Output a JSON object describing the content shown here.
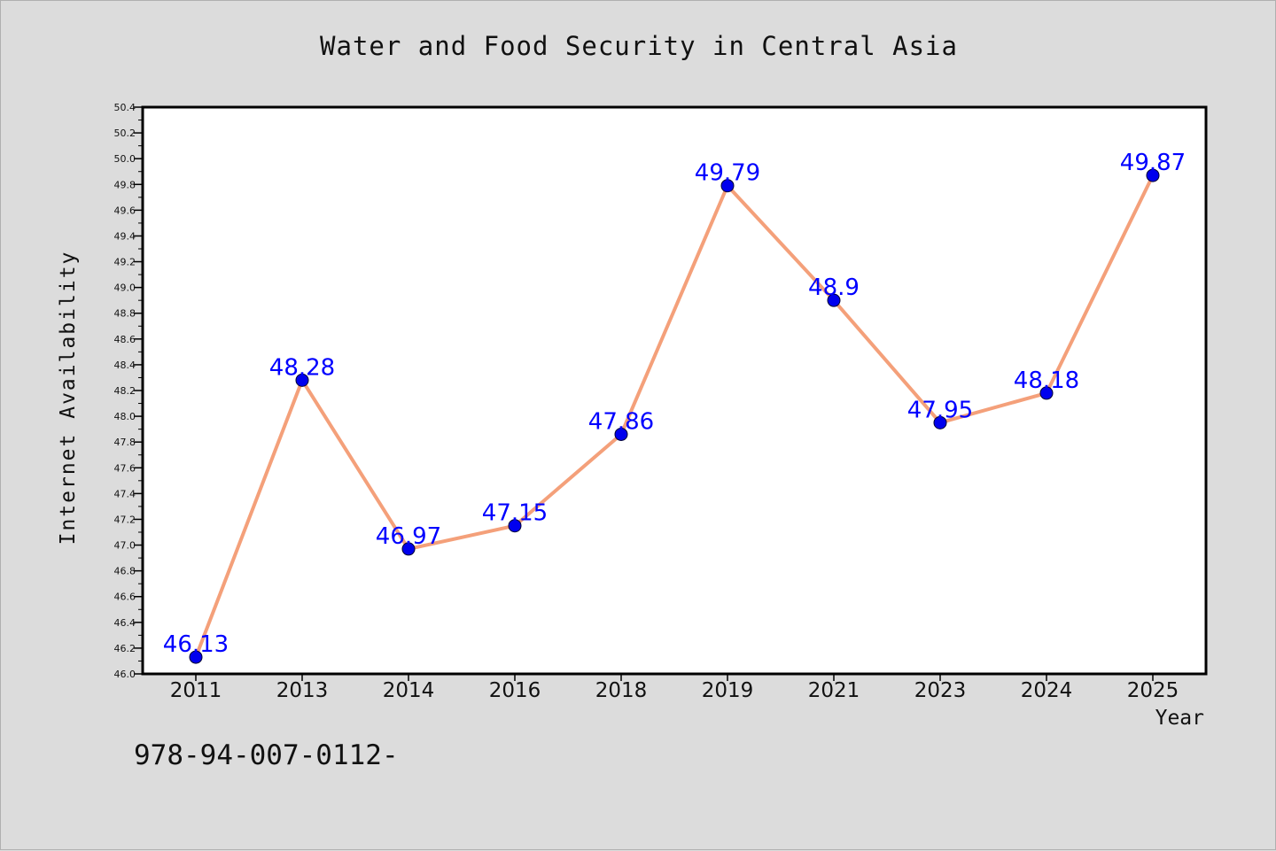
{
  "chart_data": {
    "type": "line",
    "title": "Water and Food Security in Central Asia",
    "xlabel": "Year",
    "ylabel": "Internet Availability",
    "categories": [
      "2011",
      "2013",
      "2014",
      "2016",
      "2018",
      "2019",
      "2021",
      "2023",
      "2024",
      "2025"
    ],
    "series": [
      {
        "values": [
          46.13,
          48.28,
          46.97,
          47.15,
          47.86,
          49.79,
          48.9,
          47.95,
          48.18,
          49.87
        ],
        "labels": [
          "46.13",
          "48.28",
          "46.97",
          "47.15",
          "47.86",
          "49.79",
          "48.9",
          "47.95",
          "48.18",
          "49.87"
        ],
        "line_color": "#f4a07a",
        "marker_color": "#0000ee"
      }
    ],
    "ylim": [
      46.0,
      50.4
    ],
    "yticks": [
      "46.0",
      "46.2",
      "46.4",
      "46.6",
      "46.8",
      "47.0",
      "47.2",
      "47.4",
      "47.6",
      "47.8",
      "48.0",
      "48.2",
      "48.4",
      "48.6",
      "48.8",
      "49.0",
      "49.2",
      "49.4",
      "49.6",
      "49.8",
      "50.0",
      "50.2",
      "50.4"
    ],
    "grid": false,
    "legend": "none"
  },
  "footnote": "978-94-007-0112-",
  "colors": {
    "background": "#dcdcdc",
    "plot_background": "#ffffff",
    "data_label": "#0000ff"
  }
}
